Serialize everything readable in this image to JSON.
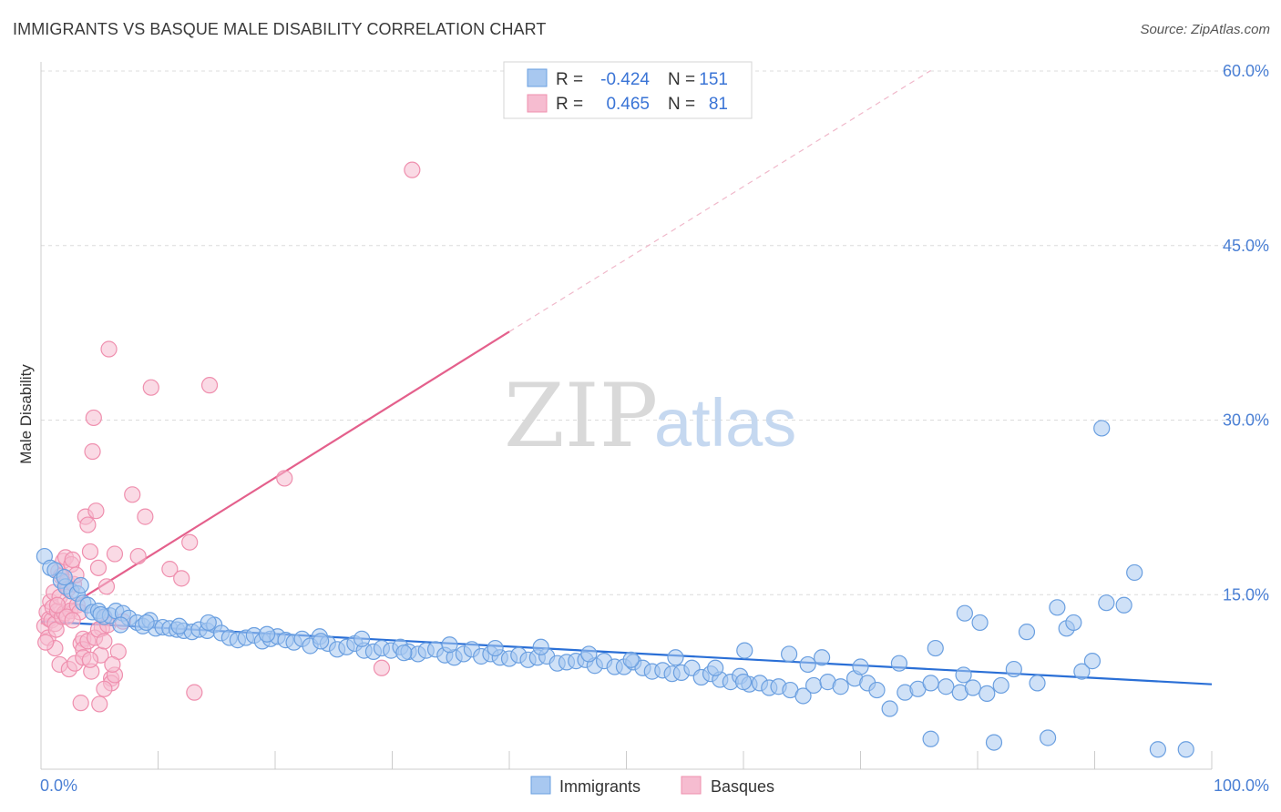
{
  "title": "IMMIGRANTS VS BASQUE MALE DISABILITY CORRELATION CHART",
  "source": "Source: ZipAtlas.com",
  "watermark": {
    "zip": "ZIP",
    "atlas": "atlas"
  },
  "legend": {
    "immigrants": {
      "r_label": "R =",
      "r_value": "-0.424",
      "n_label": "N =",
      "n_value": "151"
    },
    "basques": {
      "r_label": "R =",
      "r_value": "0.465",
      "n_label": "N =",
      "n_value": "81"
    }
  },
  "bottom_legend": {
    "immigrants": "Immigrants",
    "basques": "Basques"
  },
  "colors": {
    "immigrants_fill": "#a8c8f0",
    "immigrants_stroke": "#6a9fe0",
    "immigrants_line": "#2a6fd6",
    "basques_fill": "#f6bcd0",
    "basques_stroke": "#ef8fae",
    "basques_line": "#e4608c",
    "grid": "#dcdcdc",
    "tick_text": "#4a7fd4"
  },
  "chart_data": {
    "type": "scatter",
    "title": "IMMIGRANTS VS BASQUE MALE DISABILITY CORRELATION CHART",
    "xlabel": "",
    "ylabel": "Male Disability",
    "xlim": [
      0,
      100
    ],
    "ylim": [
      0,
      60
    ],
    "x_tick_labels": [
      "0.0%",
      "100.0%"
    ],
    "y_ticks": [
      15,
      30,
      45,
      60
    ],
    "y_tick_labels": [
      "15.0%",
      "30.0%",
      "45.0%",
      "60.0%"
    ],
    "grid": true,
    "series": [
      {
        "name": "Immigrants",
        "r": -0.424,
        "n": 151,
        "trend": {
          "x": [
            0,
            100
          ],
          "y": [
            12.7,
            7.3
          ]
        },
        "points": [
          [
            0.3,
            18.3
          ],
          [
            0.8,
            17.3
          ],
          [
            1.2,
            17.1
          ],
          [
            1.7,
            16.2
          ],
          [
            2.1,
            15.7
          ],
          [
            2.6,
            15.3
          ],
          [
            3.1,
            15.1
          ],
          [
            3.6,
            14.3
          ],
          [
            4.0,
            14.1
          ],
          [
            4.4,
            13.5
          ],
          [
            4.9,
            13.6
          ],
          [
            5.4,
            13.1
          ],
          [
            5.9,
            13.2
          ],
          [
            6.4,
            13.6
          ],
          [
            7.0,
            13.4
          ],
          [
            7.5,
            13.0
          ],
          [
            8.2,
            12.6
          ],
          [
            8.7,
            12.3
          ],
          [
            9.3,
            12.8
          ],
          [
            9.8,
            12.1
          ],
          [
            10.4,
            12.2
          ],
          [
            11.0,
            12.1
          ],
          [
            11.6,
            12.0
          ],
          [
            12.2,
            11.9
          ],
          [
            12.9,
            11.8
          ],
          [
            13.5,
            12.0
          ],
          [
            14.2,
            11.9
          ],
          [
            14.8,
            12.4
          ],
          [
            15.4,
            11.7
          ],
          [
            16.1,
            11.3
          ],
          [
            16.8,
            11.1
          ],
          [
            17.5,
            11.3
          ],
          [
            18.2,
            11.5
          ],
          [
            18.9,
            11.0
          ],
          [
            19.6,
            11.2
          ],
          [
            20.2,
            11.4
          ],
          [
            20.9,
            11.1
          ],
          [
            21.6,
            10.9
          ],
          [
            22.3,
            11.2
          ],
          [
            23.0,
            10.6
          ],
          [
            23.8,
            11.4
          ],
          [
            24.5,
            10.8
          ],
          [
            25.3,
            10.3
          ],
          [
            26.1,
            10.5
          ],
          [
            26.8,
            10.8
          ],
          [
            27.6,
            10.2
          ],
          [
            28.4,
            10.1
          ],
          [
            29.1,
            10.4
          ],
          [
            29.9,
            10.2
          ],
          [
            30.7,
            10.5
          ],
          [
            31.4,
            10.1
          ],
          [
            32.2,
            9.9
          ],
          [
            32.9,
            10.2
          ],
          [
            33.7,
            10.3
          ],
          [
            34.5,
            9.8
          ],
          [
            35.3,
            9.6
          ],
          [
            36.1,
            9.9
          ],
          [
            36.8,
            10.3
          ],
          [
            37.6,
            9.7
          ],
          [
            38.4,
            9.9
          ],
          [
            39.2,
            9.6
          ],
          [
            40.0,
            9.5
          ],
          [
            40.8,
            9.8
          ],
          [
            41.6,
            9.4
          ],
          [
            42.4,
            9.6
          ],
          [
            43.2,
            9.7
          ],
          [
            44.1,
            9.1
          ],
          [
            44.9,
            9.2
          ],
          [
            45.7,
            9.3
          ],
          [
            46.5,
            9.4
          ],
          [
            47.3,
            8.9
          ],
          [
            48.1,
            9.3
          ],
          [
            49.0,
            8.8
          ],
          [
            49.8,
            8.8
          ],
          [
            50.6,
            9.2
          ],
          [
            51.4,
            8.7
          ],
          [
            52.2,
            8.4
          ],
          [
            53.1,
            8.5
          ],
          [
            53.9,
            8.2
          ],
          [
            54.7,
            8.3
          ],
          [
            55.6,
            8.7
          ],
          [
            56.4,
            7.9
          ],
          [
            57.2,
            8.2
          ],
          [
            58.0,
            7.7
          ],
          [
            58.9,
            7.5
          ],
          [
            59.7,
            8.0
          ],
          [
            60.5,
            7.3
          ],
          [
            61.4,
            7.4
          ],
          [
            62.2,
            7.0
          ],
          [
            63.0,
            7.1
          ],
          [
            64.0,
            6.8
          ],
          [
            65.1,
            6.3
          ],
          [
            66.0,
            7.2
          ],
          [
            67.2,
            7.5
          ],
          [
            68.3,
            7.1
          ],
          [
            69.5,
            7.8
          ],
          [
            70.6,
            7.4
          ],
          [
            71.4,
            6.8
          ],
          [
            72.5,
            5.2
          ],
          [
            73.8,
            6.6
          ],
          [
            74.9,
            6.9
          ],
          [
            76.0,
            7.4
          ],
          [
            77.3,
            7.1
          ],
          [
            78.5,
            6.6
          ],
          [
            79.6,
            7.0
          ],
          [
            80.8,
            6.5
          ],
          [
            82.0,
            7.2
          ],
          [
            2.0,
            16.5
          ],
          [
            3.4,
            15.8
          ],
          [
            5.1,
            13.3
          ],
          [
            6.8,
            12.4
          ],
          [
            9.0,
            12.6
          ],
          [
            11.8,
            12.3
          ],
          [
            14.3,
            12.6
          ],
          [
            19.3,
            11.6
          ],
          [
            23.9,
            11.0
          ],
          [
            27.4,
            11.2
          ],
          [
            31.0,
            10.0
          ],
          [
            34.9,
            10.7
          ],
          [
            38.8,
            10.4
          ],
          [
            42.7,
            10.5
          ],
          [
            46.8,
            9.9
          ],
          [
            50.4,
            9.4
          ],
          [
            54.2,
            9.6
          ],
          [
            57.6,
            8.7
          ],
          [
            60.1,
            10.2
          ],
          [
            63.9,
            9.9
          ],
          [
            66.7,
            9.6
          ],
          [
            70.0,
            8.8
          ],
          [
            73.3,
            9.1
          ],
          [
            76.4,
            10.4
          ],
          [
            78.9,
            13.4
          ],
          [
            80.2,
            12.6
          ],
          [
            83.1,
            8.6
          ],
          [
            84.2,
            11.8
          ],
          [
            85.1,
            7.4
          ],
          [
            86.8,
            13.9
          ],
          [
            87.6,
            12.1
          ],
          [
            88.2,
            12.6
          ],
          [
            88.9,
            8.4
          ],
          [
            89.8,
            9.3
          ],
          [
            91.0,
            14.3
          ],
          [
            92.5,
            14.1
          ],
          [
            93.4,
            16.9
          ],
          [
            76.0,
            2.6
          ],
          [
            78.8,
            8.1
          ],
          [
            81.4,
            2.3
          ],
          [
            86.0,
            2.7
          ],
          [
            90.6,
            29.3
          ],
          [
            95.4,
            1.7
          ],
          [
            97.8,
            1.7
          ],
          [
            60.0,
            7.5
          ],
          [
            65.5,
            9.0
          ]
        ]
      },
      {
        "name": "Basques",
        "r": 0.465,
        "n": 81,
        "trend": {
          "x": [
            0,
            40
          ],
          "y": [
            12.5,
            37.6
          ],
          "extended": {
            "x": [
              40,
              100
            ],
            "y": [
              37.6,
              75.0
            ]
          }
        },
        "points": [
          [
            0.3,
            12.3
          ],
          [
            0.5,
            13.5
          ],
          [
            0.6,
            11.3
          ],
          [
            0.7,
            12.9
          ],
          [
            0.8,
            14.4
          ],
          [
            0.9,
            12.8
          ],
          [
            1.0,
            13.9
          ],
          [
            1.1,
            15.2
          ],
          [
            1.2,
            12.5
          ],
          [
            1.3,
            12.0
          ],
          [
            1.4,
            13.6
          ],
          [
            1.5,
            17.0
          ],
          [
            1.6,
            14.8
          ],
          [
            1.7,
            16.6
          ],
          [
            1.8,
            13.1
          ],
          [
            1.9,
            17.9
          ],
          [
            2.0,
            13.4
          ],
          [
            2.1,
            18.2
          ],
          [
            2.2,
            16.1
          ],
          [
            2.3,
            15.5
          ],
          [
            2.4,
            14.2
          ],
          [
            2.5,
            13.6
          ],
          [
            2.6,
            17.6
          ],
          [
            2.7,
            18.0
          ],
          [
            2.8,
            15.9
          ],
          [
            3.0,
            16.7
          ],
          [
            3.1,
            14.1
          ],
          [
            3.3,
            13.5
          ],
          [
            3.4,
            10.8
          ],
          [
            3.6,
            11.2
          ],
          [
            3.8,
            21.7
          ],
          [
            4.0,
            21.0
          ],
          [
            4.2,
            18.7
          ],
          [
            4.4,
            27.3
          ],
          [
            4.5,
            30.2
          ],
          [
            4.7,
            22.2
          ],
          [
            4.9,
            17.3
          ],
          [
            5.2,
            12.1
          ],
          [
            5.4,
            13.0
          ],
          [
            5.6,
            15.7
          ],
          [
            5.8,
            36.1
          ],
          [
            6.0,
            7.8
          ],
          [
            6.3,
            18.5
          ],
          [
            7.0,
            12.7
          ],
          [
            7.8,
            23.6
          ],
          [
            8.3,
            18.3
          ],
          [
            8.9,
            21.7
          ],
          [
            9.4,
            32.8
          ],
          [
            11.0,
            17.2
          ],
          [
            12.0,
            16.4
          ],
          [
            12.7,
            19.5
          ],
          [
            13.1,
            6.6
          ],
          [
            14.4,
            33.0
          ],
          [
            20.8,
            25.0
          ],
          [
            29.1,
            8.7
          ],
          [
            31.7,
            51.5
          ],
          [
            1.2,
            10.4
          ],
          [
            1.6,
            9.0
          ],
          [
            2.4,
            8.6
          ],
          [
            2.9,
            9.1
          ],
          [
            3.4,
            5.7
          ],
          [
            3.6,
            10.3
          ],
          [
            4.0,
            11.0
          ],
          [
            4.3,
            8.4
          ],
          [
            4.6,
            11.3
          ],
          [
            4.9,
            12.0
          ],
          [
            5.1,
            9.8
          ],
          [
            5.4,
            11.0
          ],
          [
            5.7,
            12.4
          ],
          [
            6.0,
            7.4
          ],
          [
            6.3,
            8.1
          ],
          [
            6.6,
            10.1
          ],
          [
            3.6,
            9.6
          ],
          [
            4.2,
            9.4
          ],
          [
            5.0,
            5.6
          ],
          [
            5.4,
            6.9
          ],
          [
            6.1,
            9.0
          ],
          [
            0.4,
            10.9
          ],
          [
            1.4,
            14.1
          ],
          [
            2.2,
            13.1
          ],
          [
            2.7,
            12.8
          ]
        ]
      }
    ]
  }
}
